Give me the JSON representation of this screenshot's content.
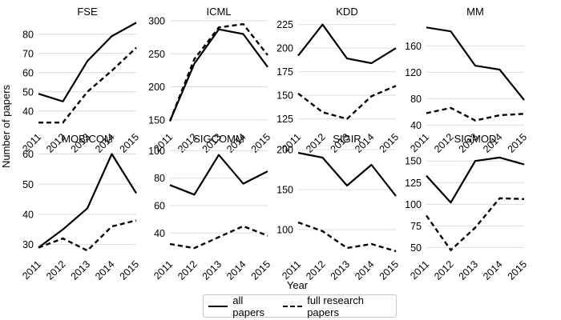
{
  "chart_data": {
    "type": "line",
    "ylabel": "Number of papers",
    "xlabel": "Year",
    "legend": [
      "all papers",
      "full research papers"
    ],
    "legend_position": "bottom-center",
    "x": [
      "2011",
      "2012",
      "2013",
      "2014",
      "2015"
    ],
    "panels": [
      {
        "title": "FSE",
        "ylim": [
          32,
          87
        ],
        "yticks": [
          40,
          50,
          60,
          70,
          80
        ],
        "series": [
          {
            "name": "all papers",
            "values": [
              49,
              45,
              66,
              79,
              86
            ]
          },
          {
            "name": "full research papers",
            "values": [
              34,
              34,
              50,
              61,
              73
            ]
          }
        ]
      },
      {
        "title": "ICML",
        "ylim": [
          140,
          300
        ],
        "yticks": [
          150,
          200,
          250,
          300
        ],
        "series": [
          {
            "name": "all papers",
            "values": [
              148,
              235,
              287,
              280,
              230
            ]
          },
          {
            "name": "full research papers",
            "values": [
              148,
              242,
              290,
              295,
              248
            ]
          }
        ]
      },
      {
        "title": "KDD",
        "ylim": [
          117,
          229
        ],
        "yticks": [
          125,
          150,
          175,
          200,
          225
        ],
        "series": [
          {
            "name": "all papers",
            "values": [
              192,
              225,
              189,
              184,
              200
            ]
          },
          {
            "name": "full research papers",
            "values": [
              152,
              132,
              125,
              149,
              160
            ]
          }
        ]
      },
      {
        "title": "MM",
        "ylim": [
          38,
          198
        ],
        "yticks": [
          40,
          80,
          120,
          160
        ],
        "series": [
          {
            "name": "all papers",
            "values": [
              188,
              182,
              130,
              124,
              78
            ]
          },
          {
            "name": "full research papers",
            "values": [
              58,
              66,
              47,
              55,
              57
            ]
          }
        ]
      },
      {
        "title": "MOBICOM",
        "ylim": [
          27,
          62
        ],
        "yticks": [
          30,
          40,
          50,
          60
        ],
        "series": [
          {
            "name": "all papers",
            "values": [
              29,
              35,
              42,
              60,
              47
            ]
          },
          {
            "name": "full research papers",
            "values": [
              29,
              32,
              28,
              36,
              38
            ]
          }
        ]
      },
      {
        "title": "SIGCOMM",
        "ylim": [
          25,
          102
        ],
        "yticks": [
          40,
          60,
          80,
          100
        ],
        "series": [
          {
            "name": "all papers",
            "values": [
              75,
              68,
              97,
              76,
              85
            ]
          },
          {
            "name": "full research papers",
            "values": [
              32,
              29,
              37,
              45,
              38
            ]
          }
        ]
      },
      {
        "title": "SIGIR",
        "ylim": [
          70,
          202
        ],
        "yticks": [
          100,
          150,
          200
        ],
        "series": [
          {
            "name": "all papers",
            "values": [
              196,
              190,
              155,
              181,
              142
            ]
          },
          {
            "name": "full research papers",
            "values": [
              109,
              98,
              77,
              82,
              73
            ]
          }
        ]
      },
      {
        "title": "SIGMOD",
        "ylim": [
          43,
          165
        ],
        "yticks": [
          50,
          75,
          100,
          125,
          150
        ],
        "series": [
          {
            "name": "all papers",
            "values": [
              133,
              102,
              150,
              154,
              146
            ]
          },
          {
            "name": "full research papers",
            "values": [
              87,
              47,
              73,
              107,
              106
            ]
          }
        ]
      }
    ]
  }
}
